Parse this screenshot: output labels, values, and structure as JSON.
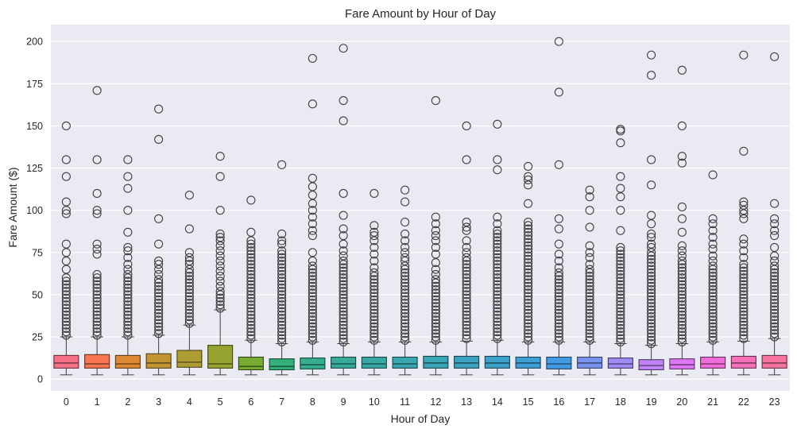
{
  "chart_data": {
    "type": "box",
    "title": "Fare Amount by Hour of Day",
    "xlabel": "Hour of Day",
    "ylabel": "Fare Amount ($)",
    "ylim": [
      -7,
      210
    ],
    "yticks": [
      0,
      25,
      50,
      75,
      100,
      125,
      150,
      175,
      200
    ],
    "grid": true,
    "legend": "none",
    "categories": [
      "0",
      "1",
      "2",
      "3",
      "4",
      "5",
      "6",
      "7",
      "8",
      "9",
      "10",
      "11",
      "12",
      "13",
      "14",
      "15",
      "16",
      "17",
      "18",
      "19",
      "20",
      "21",
      "22",
      "23"
    ],
    "boxes": [
      {
        "hour": "0",
        "whislo": 2.5,
        "q1": 6.5,
        "med": 9.5,
        "q3": 14.0,
        "whishi": 25.0,
        "color": "#f77189",
        "fliers": [
          26,
          28,
          30,
          32,
          34,
          36,
          38,
          40,
          42,
          44,
          46,
          48,
          50,
          52,
          54,
          56,
          58,
          60,
          65,
          70,
          75,
          80,
          98,
          100,
          105,
          120,
          130,
          150
        ]
      },
      {
        "hour": "1",
        "whislo": 2.5,
        "q1": 6.5,
        "med": 9.0,
        "q3": 14.5,
        "whishi": 25.0,
        "color": "#f7754f",
        "fliers": [
          26,
          28,
          30,
          32,
          34,
          36,
          38,
          40,
          42,
          44,
          46,
          48,
          50,
          52,
          54,
          56,
          58,
          60,
          62,
          74,
          77,
          80,
          98,
          100,
          110,
          130,
          171
        ]
      },
      {
        "hour": "2",
        "whislo": 2.5,
        "q1": 6.5,
        "med": 9.0,
        "q3": 14.0,
        "whishi": 25.0,
        "color": "#dc8932",
        "fliers": [
          26,
          28,
          30,
          32,
          34,
          36,
          38,
          40,
          42,
          44,
          46,
          48,
          50,
          52,
          54,
          56,
          58,
          60,
          62,
          65,
          68,
          72,
          76,
          78,
          87,
          100,
          113,
          120,
          130
        ]
      },
      {
        "hour": "3",
        "whislo": 2.5,
        "q1": 6.5,
        "med": 9.5,
        "q3": 15.0,
        "whishi": 26.0,
        "color": "#c39532",
        "fliers": [
          27,
          29,
          31,
          33,
          35,
          37,
          39,
          41,
          43,
          45,
          47,
          49,
          51,
          53,
          55,
          57,
          59,
          62,
          65,
          68,
          70,
          80,
          95,
          142,
          160
        ]
      },
      {
        "hour": "4",
        "whislo": 2.5,
        "q1": 7.0,
        "med": 10.0,
        "q3": 17.0,
        "whishi": 32.0,
        "color": "#ae9d31",
        "fliers": [
          33,
          35,
          37,
          39,
          41,
          43,
          45,
          47,
          49,
          51,
          53,
          55,
          57,
          59,
          61,
          63,
          65,
          68,
          70,
          72,
          75,
          89,
          109
        ]
      },
      {
        "hour": "5",
        "whislo": 2.5,
        "q1": 6.5,
        "med": 9.0,
        "q3": 20.0,
        "whishi": 41.0,
        "color": "#97a431",
        "fliers": [
          42,
          44,
          46,
          48,
          50,
          52,
          55,
          58,
          61,
          64,
          67,
          70,
          73,
          76,
          79,
          82,
          84,
          86,
          100,
          120,
          132
        ]
      },
      {
        "hour": "6",
        "whislo": 2.5,
        "q1": 5.5,
        "med": 7.5,
        "q3": 13.0,
        "whishi": 23.0,
        "color": "#77ab31",
        "fliers": [
          24,
          26,
          28,
          30,
          32,
          34,
          36,
          38,
          40,
          42,
          44,
          46,
          48,
          50,
          52,
          54,
          56,
          58,
          60,
          62,
          64,
          66,
          68,
          70,
          72,
          74,
          76,
          78,
          80,
          82,
          87,
          106
        ]
      },
      {
        "hour": "7",
        "whislo": 2.5,
        "q1": 5.5,
        "med": 7.5,
        "q3": 12.0,
        "whishi": 21.0,
        "color": "#33b07a",
        "fliers": [
          22,
          24,
          26,
          28,
          30,
          32,
          34,
          36,
          38,
          40,
          42,
          44,
          46,
          48,
          50,
          52,
          54,
          56,
          58,
          60,
          62,
          64,
          66,
          68,
          70,
          72,
          74,
          76,
          80,
          82,
          86,
          127
        ]
      },
      {
        "hour": "8",
        "whislo": 2.5,
        "q1": 6.0,
        "med": 8.5,
        "q3": 12.5,
        "whishi": 22.0,
        "color": "#36ad8f",
        "fliers": [
          23,
          25,
          27,
          29,
          31,
          33,
          35,
          37,
          39,
          41,
          43,
          45,
          47,
          49,
          51,
          53,
          55,
          57,
          59,
          61,
          63,
          65,
          67,
          70,
          75,
          85,
          88,
          92,
          96,
          100,
          104,
          109,
          114,
          119,
          163,
          190
        ]
      },
      {
        "hour": "9",
        "whislo": 2.5,
        "q1": 6.5,
        "med": 9.0,
        "q3": 13.0,
        "whishi": 21.0,
        "color": "#37aa9c",
        "fliers": [
          22,
          24,
          26,
          28,
          30,
          32,
          34,
          36,
          38,
          40,
          42,
          44,
          46,
          48,
          50,
          52,
          54,
          56,
          58,
          60,
          62,
          64,
          66,
          68,
          70,
          73,
          76,
          80,
          85,
          89,
          97,
          110,
          153,
          165,
          196
        ]
      },
      {
        "hour": "10",
        "whislo": 2.5,
        "q1": 6.5,
        "med": 9.0,
        "q3": 13.0,
        "whishi": 22.0,
        "color": "#38a8a5",
        "fliers": [
          23,
          25,
          27,
          29,
          31,
          33,
          35,
          37,
          39,
          41,
          43,
          45,
          47,
          49,
          51,
          53,
          55,
          57,
          59,
          61,
          63,
          66,
          70,
          74,
          78,
          82,
          85,
          87,
          91,
          110
        ]
      },
      {
        "hour": "11",
        "whislo": 2.5,
        "q1": 6.5,
        "med": 9.0,
        "q3": 13.0,
        "whishi": 22.0,
        "color": "#39a7ae",
        "fliers": [
          23,
          25,
          27,
          29,
          31,
          33,
          35,
          37,
          39,
          41,
          43,
          45,
          47,
          49,
          51,
          53,
          55,
          57,
          59,
          61,
          63,
          65,
          67,
          70,
          72,
          75,
          78,
          82,
          86,
          93,
          105,
          112
        ]
      },
      {
        "hour": "12",
        "whislo": 2.5,
        "q1": 6.5,
        "med": 9.5,
        "q3": 13.5,
        "whishi": 22.0,
        "color": "#3aa5b6",
        "fliers": [
          23,
          25,
          27,
          29,
          31,
          33,
          35,
          37,
          39,
          41,
          43,
          45,
          47,
          49,
          51,
          53,
          55,
          57,
          59,
          62,
          65,
          69,
          74,
          78,
          82,
          85,
          88,
          92,
          96,
          165
        ]
      },
      {
        "hour": "13",
        "whislo": 2.5,
        "q1": 6.5,
        "med": 9.5,
        "q3": 13.5,
        "whishi": 22.5,
        "color": "#3ba3bf",
        "fliers": [
          24,
          26,
          28,
          30,
          32,
          34,
          36,
          38,
          40,
          42,
          44,
          46,
          48,
          50,
          52,
          54,
          56,
          58,
          60,
          62,
          64,
          66,
          68,
          70,
          72,
          75,
          78,
          82,
          88,
          90,
          93,
          130,
          150
        ]
      },
      {
        "hour": "14",
        "whislo": 2.5,
        "q1": 6.5,
        "med": 9.5,
        "q3": 13.5,
        "whishi": 23.0,
        "color": "#3da1c9",
        "fliers": [
          24,
          26,
          28,
          30,
          32,
          34,
          36,
          38,
          40,
          42,
          44,
          46,
          48,
          50,
          52,
          54,
          56,
          58,
          60,
          62,
          64,
          66,
          68,
          70,
          72,
          74,
          76,
          78,
          80,
          82,
          84,
          86,
          88,
          92,
          96,
          124,
          130,
          151
        ]
      },
      {
        "hour": "15",
        "whislo": 2.5,
        "q1": 6.5,
        "med": 9.5,
        "q3": 13.0,
        "whishi": 22.0,
        "color": "#3f9ed5",
        "fliers": [
          23,
          25,
          27,
          29,
          31,
          33,
          35,
          37,
          39,
          41,
          43,
          45,
          47,
          49,
          51,
          53,
          55,
          57,
          59,
          61,
          63,
          65,
          67,
          69,
          71,
          73,
          75,
          77,
          79,
          81,
          83,
          85,
          87,
          89,
          91,
          93,
          104,
          115,
          118,
          120,
          126
        ]
      },
      {
        "hour": "16",
        "whislo": 2.5,
        "q1": 6.0,
        "med": 9.0,
        "q3": 13.0,
        "whishi": 22.0,
        "color": "#429ae3",
        "fliers": [
          23,
          25,
          27,
          29,
          31,
          33,
          35,
          37,
          39,
          41,
          43,
          45,
          47,
          49,
          51,
          53,
          55,
          57,
          59,
          61,
          63,
          66,
          70,
          74,
          80,
          89,
          95,
          127,
          170,
          200
        ]
      },
      {
        "hour": "17",
        "whislo": 2.5,
        "q1": 6.5,
        "med": 9.5,
        "q3": 13.0,
        "whishi": 22.0,
        "color": "#7b93f0",
        "fliers": [
          23,
          25,
          27,
          29,
          31,
          33,
          35,
          37,
          39,
          41,
          43,
          45,
          47,
          49,
          51,
          53,
          55,
          57,
          59,
          61,
          63,
          65,
          68,
          72,
          75,
          79,
          90,
          100,
          108,
          112
        ]
      },
      {
        "hour": "18",
        "whislo": 2.5,
        "q1": 6.5,
        "med": 9.0,
        "q3": 12.5,
        "whishi": 21.0,
        "color": "#a08bf4",
        "fliers": [
          22,
          24,
          26,
          28,
          30,
          32,
          34,
          36,
          38,
          40,
          42,
          44,
          46,
          48,
          50,
          52,
          54,
          56,
          58,
          60,
          62,
          64,
          66,
          68,
          70,
          72,
          74,
          76,
          78,
          88,
          100,
          108,
          113,
          120,
          140,
          147,
          148
        ]
      },
      {
        "hour": "19",
        "whislo": 2.5,
        "q1": 5.5,
        "med": 8.0,
        "q3": 11.5,
        "whishi": 20.0,
        "color": "#c082f4",
        "fliers": [
          21,
          23,
          25,
          27,
          29,
          31,
          33,
          35,
          37,
          39,
          41,
          43,
          45,
          47,
          49,
          51,
          53,
          55,
          57,
          59,
          61,
          63,
          65,
          67,
          69,
          71,
          73,
          75,
          78,
          80,
          84,
          86,
          92,
          97,
          115,
          130,
          180,
          192
        ]
      },
      {
        "hour": "20",
        "whislo": 2.5,
        "q1": 6.0,
        "med": 8.5,
        "q3": 12.0,
        "whishi": 21.0,
        "color": "#de77f3",
        "fliers": [
          22,
          24,
          26,
          28,
          30,
          32,
          34,
          36,
          38,
          40,
          42,
          44,
          46,
          48,
          50,
          52,
          54,
          56,
          58,
          60,
          62,
          64,
          66,
          68,
          70,
          73,
          76,
          79,
          87,
          95,
          102,
          128,
          132,
          150,
          183
        ]
      },
      {
        "hour": "21",
        "whislo": 2.5,
        "q1": 6.5,
        "med": 9.0,
        "q3": 13.0,
        "whishi": 22.0,
        "color": "#f06cd8",
        "fliers": [
          23,
          25,
          27,
          29,
          31,
          33,
          35,
          37,
          39,
          41,
          43,
          45,
          47,
          49,
          51,
          53,
          55,
          57,
          59,
          61,
          63,
          65,
          67,
          70,
          73,
          77,
          80,
          84,
          88,
          92,
          95,
          121
        ]
      },
      {
        "hour": "22",
        "whislo": 2.5,
        "q1": 6.5,
        "med": 9.5,
        "q3": 13.5,
        "whishi": 22.5,
        "color": "#f570b9",
        "fliers": [
          24,
          26,
          28,
          30,
          32,
          34,
          36,
          38,
          40,
          42,
          44,
          46,
          48,
          50,
          52,
          54,
          56,
          58,
          60,
          62,
          64,
          66,
          68,
          72,
          76,
          80,
          83,
          95,
          98,
          100,
          103,
          105,
          135,
          192
        ]
      },
      {
        "hour": "23",
        "whislo": 2.5,
        "q1": 6.5,
        "med": 9.5,
        "q3": 14.0,
        "whishi": 24.0,
        "color": "#f6739e",
        "fliers": [
          25,
          27,
          29,
          31,
          33,
          35,
          37,
          39,
          41,
          43,
          45,
          47,
          49,
          51,
          53,
          55,
          57,
          59,
          61,
          63,
          65,
          67,
          70,
          73,
          78,
          85,
          88,
          92,
          95,
          104,
          191
        ]
      }
    ]
  }
}
